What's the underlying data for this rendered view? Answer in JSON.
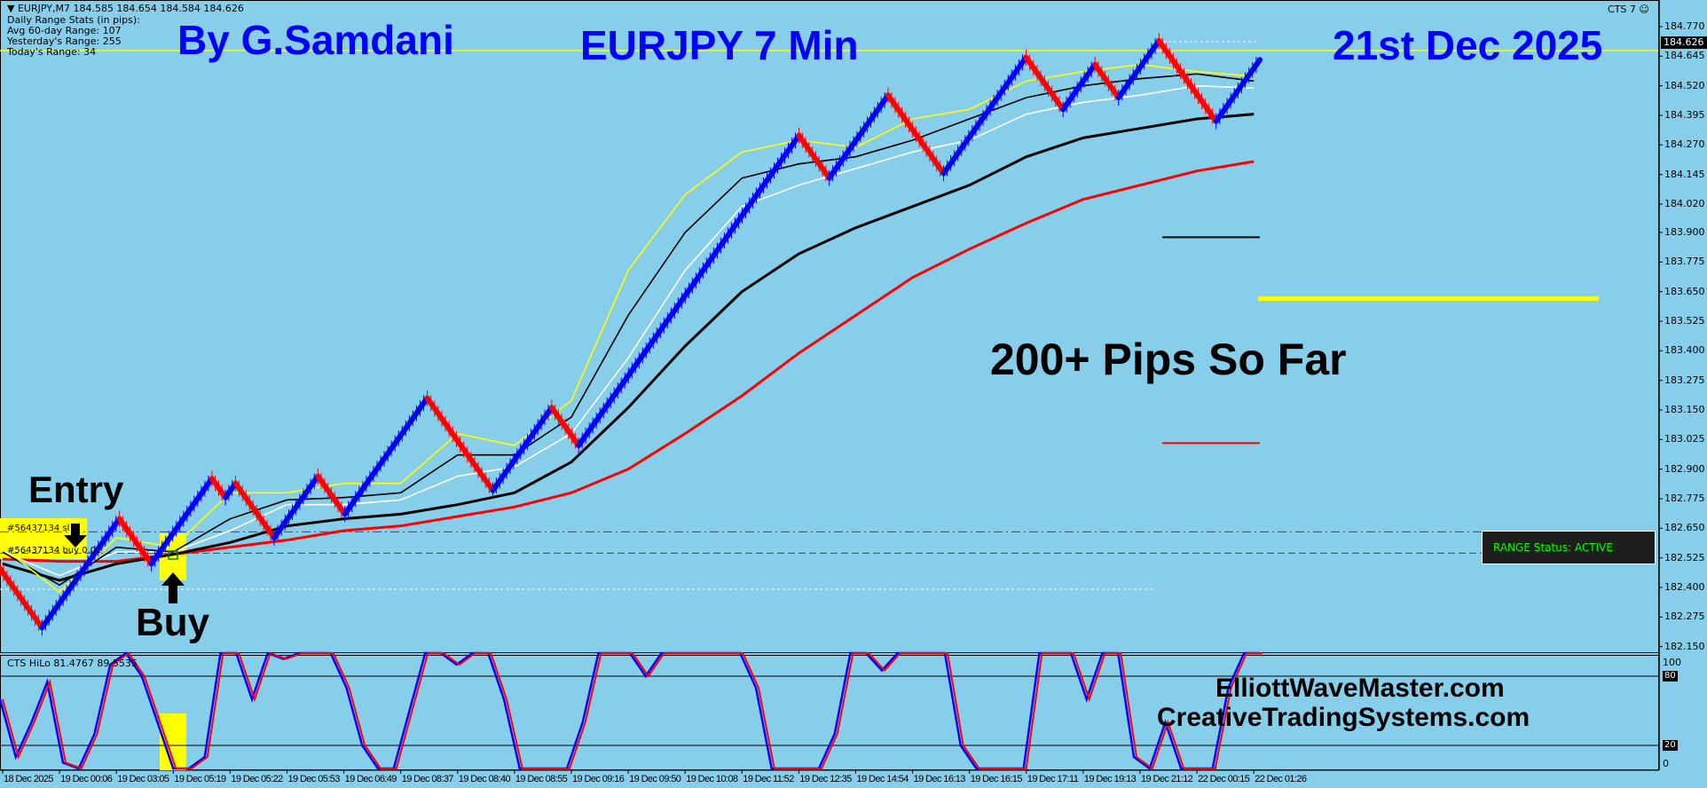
{
  "header": {
    "symbol_line": "EURJPY,M7  184.585 184.654 184.584 184.626",
    "stats_title": "Daily Range Stats (in pips):",
    "avg_range": "Avg 60-day Range: 107",
    "yesterday_range": "Yesterday's Range: 255",
    "today_range": "Today's Range: 34",
    "indicator_name": "CTS 7",
    "indicator_icon": "smiley-icon"
  },
  "overlay_text": {
    "author": "By G.Samdani",
    "title": "EURJPY 7 Min",
    "date": "21st Dec 2025",
    "pips": "200+ Pips So Far",
    "entry": "Entry",
    "buy": "Buy",
    "site1": "ElliottWaveMaster.com",
    "site2": "CreativeTradingSystems.com"
  },
  "trade": {
    "sl_label": "#56437134 sl",
    "buy_label": "#56437134 buy 0.01",
    "sl_price": 182.635,
    "entry_price": 182.545
  },
  "range_status": "RANGE Status: ACTIVE",
  "current_price": "184.626",
  "colors": {
    "background": "#87ceeb",
    "up_brick": "#0000ff",
    "down_brick": "#ff0000",
    "title_text": "#0000ff",
    "range_status_text": "#00ff00",
    "current_price_line": "#ffff00"
  },
  "chart_data": {
    "type": "line",
    "title": "",
    "price_axis_ticks": [
      "184.770",
      "184.645",
      "184.520",
      "184.395",
      "184.270",
      "184.145",
      "184.020",
      "183.900",
      "183.775",
      "183.650",
      "183.525",
      "183.400",
      "183.275",
      "183.150",
      "183.025",
      "182.900",
      "182.775",
      "182.650",
      "182.525",
      "182.400",
      "182.275",
      "182.150"
    ],
    "ylim": [
      182.12,
      184.88
    ],
    "time_axis_ticks": [
      "18 Dec 2025",
      "19 Dec 00:06",
      "19 Dec 03:05",
      "19 Dec 05:19",
      "19 Dec 05:22",
      "19 Dec 05:53",
      "19 Dec 06:49",
      "19 Dec 08:37",
      "19 Dec 08:40",
      "19 Dec 08:55",
      "19 Dec 09:16",
      "19 Dec 09:50",
      "19 Dec 10:08",
      "19 Dec 11:52",
      "19 Dec 12:35",
      "19 Dec 14:54",
      "19 Dec 16:13",
      "19 Dec 16:15",
      "19 Dec 17:11",
      "19 Dec 19:13",
      "19 Dec 21:12",
      "22 Dec 00:15",
      "22 Dec 01:26"
    ],
    "price_swings": [
      182.48,
      182.23,
      182.69,
      182.5,
      182.86,
      182.78,
      182.84,
      182.61,
      182.87,
      182.71,
      183.2,
      182.81,
      183.16,
      183.0,
      184.31,
      184.13,
      184.48,
      184.15,
      184.64,
      184.42,
      184.61,
      184.47,
      184.71,
      184.37,
      184.63
    ],
    "moving_averages": [
      {
        "color": "#ff0000",
        "values": [
          182.52,
          182.51,
          182.51,
          182.54,
          182.57,
          182.6,
          182.64,
          182.66,
          182.7,
          182.74,
          182.8,
          182.9,
          183.05,
          183.21,
          183.39,
          183.55,
          183.71,
          183.83,
          183.94,
          184.04,
          184.1,
          184.16,
          184.2
        ]
      },
      {
        "color": "#000000",
        "values": [
          182.5,
          182.43,
          182.5,
          182.54,
          182.59,
          182.66,
          182.69,
          182.71,
          182.75,
          182.8,
          182.93,
          183.16,
          183.42,
          183.65,
          183.81,
          183.92,
          184.01,
          184.1,
          184.22,
          184.3,
          184.34,
          184.38,
          184.4
        ]
      },
      {
        "color": "#ffffff",
        "values": [
          182.55,
          182.45,
          182.55,
          182.55,
          182.64,
          182.75,
          182.75,
          182.77,
          182.87,
          182.91,
          183.05,
          183.37,
          183.74,
          184.01,
          184.1,
          184.17,
          184.24,
          184.29,
          184.4,
          184.45,
          184.48,
          184.52,
          184.51
        ]
      },
      {
        "color": "#000000",
        "values": [
          182.55,
          182.41,
          182.57,
          182.55,
          182.69,
          182.77,
          182.78,
          182.8,
          182.96,
          182.96,
          183.12,
          183.55,
          183.9,
          184.13,
          184.19,
          184.22,
          184.29,
          184.38,
          184.47,
          184.52,
          184.55,
          184.57,
          184.54
        ]
      },
      {
        "color": "#ffff00",
        "values": [
          182.57,
          182.38,
          182.61,
          182.57,
          182.8,
          182.8,
          182.84,
          182.84,
          183.05,
          183.0,
          183.19,
          183.74,
          184.06,
          184.24,
          184.29,
          184.26,
          184.38,
          184.42,
          184.54,
          184.58,
          184.61,
          184.58,
          184.56
        ]
      }
    ],
    "levels": {
      "yellow": 183.62,
      "black": 183.88,
      "red": 183.01
    },
    "oscillator": {
      "label": "CTS HiLo 81.4767 89.5535",
      "axis_ticks": [
        "100",
        "80",
        "20",
        "0"
      ],
      "levels": [
        80,
        20
      ],
      "values": [
        60,
        10,
        40,
        75,
        5,
        0,
        30,
        90,
        100,
        80,
        40,
        0,
        0,
        10,
        100,
        100,
        60,
        100,
        95,
        100,
        100,
        100,
        70,
        20,
        0,
        0,
        50,
        100,
        100,
        90,
        100,
        100,
        60,
        0,
        0,
        0,
        0,
        40,
        100,
        100,
        100,
        80,
        100,
        100,
        100,
        100,
        100,
        100,
        70,
        0,
        0,
        0,
        0,
        30,
        100,
        100,
        85,
        100,
        100,
        100,
        100,
        20,
        0,
        0,
        0,
        0,
        100,
        100,
        100,
        60,
        100,
        100,
        10,
        0,
        40,
        0,
        0,
        0,
        70,
        100,
        100
      ]
    }
  }
}
